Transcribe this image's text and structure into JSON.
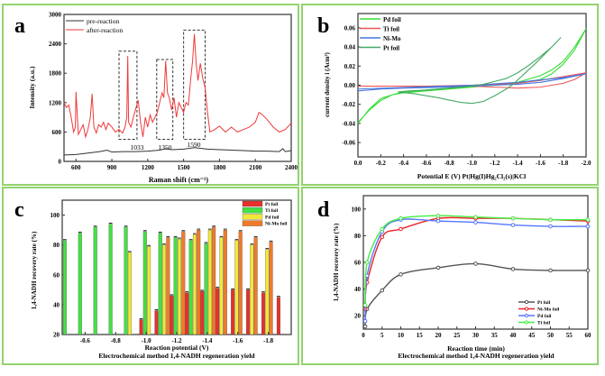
{
  "chart_data": [
    {
      "panel": "a",
      "type": "line",
      "xlabel": "Raman shift (cm⁻¹)",
      "ylabel": "Intensity (a.u.)",
      "xlim": [
        500,
        2400
      ],
      "ylim": [
        0,
        3000
      ],
      "xticks": [
        600,
        900,
        1200,
        1500,
        1800,
        2100,
        2400
      ],
      "yticks": [
        0,
        600,
        1200,
        1800,
        2400,
        3000
      ],
      "annotations": [
        "1033",
        "1350",
        "1590"
      ],
      "series": [
        {
          "name": "pre-reaction",
          "color": "#333333",
          "x": [
            500,
            600,
            700,
            800,
            860,
            900,
            1000,
            1100,
            1200,
            1300,
            1350,
            1400,
            1500,
            1590,
            1700,
            1800,
            1900,
            2000,
            2100,
            2200,
            2300,
            2330,
            2350,
            2400
          ],
          "y": [
            130,
            140,
            170,
            200,
            230,
            190,
            200,
            200,
            210,
            230,
            260,
            240,
            250,
            280,
            250,
            240,
            230,
            220,
            210,
            210,
            200,
            260,
            200,
            220
          ]
        },
        {
          "name": "after-reaction",
          "color": "#f03a3a",
          "x": [
            500,
            520,
            540,
            560,
            580,
            595,
            600,
            620,
            640,
            660,
            680,
            700,
            720,
            735,
            750,
            770,
            790,
            810,
            830,
            850,
            870,
            900,
            930,
            960,
            990,
            1010,
            1025,
            1033,
            1040,
            1060,
            1080,
            1100,
            1120,
            1140,
            1160,
            1180,
            1200,
            1220,
            1240,
            1260,
            1280,
            1300,
            1320,
            1335,
            1350,
            1365,
            1380,
            1400,
            1420,
            1440,
            1460,
            1480,
            1500,
            1520,
            1540,
            1560,
            1575,
            1590,
            1605,
            1620,
            1640,
            1660,
            1680,
            1700,
            1720,
            1760,
            1800,
            1850,
            1900,
            1950,
            2000,
            2050,
            2100,
            2130,
            2160,
            2200,
            2250,
            2300,
            2350,
            2400
          ],
          "y": [
            1200,
            1100,
            1150,
            900,
            600,
            700,
            1420,
            550,
            650,
            750,
            500,
            650,
            900,
            1380,
            700,
            580,
            750,
            700,
            800,
            650,
            780,
            700,
            600,
            650,
            580,
            700,
            900,
            2150,
            800,
            700,
            900,
            1080,
            1250,
            800,
            500,
            900,
            700,
            950,
            800,
            900,
            1000,
            1200,
            1400,
            1300,
            2050,
            1400,
            1300,
            1050,
            1300,
            900,
            1200,
            1100,
            1000,
            1200,
            1150,
            1700,
            2050,
            2600,
            2000,
            1650,
            2000,
            1700,
            1500,
            1000,
            600,
            650,
            720,
            600,
            700,
            600,
            650,
            700,
            800,
            1000,
            950,
            850,
            700,
            600,
            650,
            780
          ]
        }
      ]
    },
    {
      "panel": "b",
      "type": "line",
      "xlabel": "Potential E (V)  Pt|Hg(I)Hg₂Cl₂(s)|KCl",
      "ylabel": "current density i (Acm²)",
      "xlim": [
        0,
        -2.0
      ],
      "ylim": [
        -0.075,
        0.075
      ],
      "xticks": [
        "0.0",
        "-0.2",
        "-0.4",
        "-0.6",
        "-0.8",
        "-1.0",
        "-1.2",
        "-1.4",
        "-1.6",
        "-1.8",
        "-2.0"
      ],
      "yticks": [
        "0.06",
        "0.04",
        "0.02",
        "0.00",
        "-0.02",
        "-0.04",
        "-0.06"
      ],
      "series": [
        {
          "name": "Pd foil",
          "color": "#33dd33",
          "x": [
            0,
            -0.1,
            -0.2,
            -0.3,
            -0.4,
            -0.6,
            -0.8,
            -1.0,
            -1.2,
            -1.4,
            -1.6,
            -1.7,
            -1.8,
            -1.9,
            -2.0,
            -1.9,
            -1.8,
            -1.7,
            -1.6,
            -1.4,
            -1.2,
            -1.0,
            -0.8,
            -0.6,
            -0.4,
            -0.3,
            -0.2,
            -0.1,
            0
          ],
          "y": [
            -0.039,
            -0.026,
            -0.016,
            -0.01,
            -0.008,
            -0.006,
            -0.004,
            -0.002,
            0,
            0.003,
            0.01,
            0.016,
            0.025,
            0.04,
            0.059,
            0.037,
            0.022,
            0.012,
            0.006,
            0.002,
            0,
            -0.002,
            -0.003,
            -0.005,
            -0.007,
            -0.01,
            -0.014,
            -0.025,
            -0.04
          ]
        },
        {
          "name": "Ti foil",
          "color": "#f05555",
          "x": [
            0,
            -0.4,
            -0.8,
            -1.0,
            -1.2,
            -1.4,
            -1.6,
            -1.8,
            -1.9,
            -2.0,
            -1.8,
            -1.6,
            -1.4,
            -1.0,
            -0.6,
            -0.2,
            0
          ],
          "y": [
            -0.001,
            -0.001,
            -0.001,
            -0.001,
            -0.002,
            -0.003,
            -0.002,
            0.002,
            0.006,
            0.013,
            0.009,
            0.005,
            0.002,
            0,
            -0.001,
            -0.001,
            -0.001
          ]
        },
        {
          "name": "Ni-Mo",
          "color": "#4477dd",
          "x": [
            0,
            -0.2,
            -0.4,
            -0.8,
            -1.2,
            -1.4,
            -1.6,
            -1.8,
            -2.0,
            -1.8,
            -1.4,
            -1.0,
            -0.5,
            0
          ],
          "y": [
            -0.006,
            -0.004,
            -0.003,
            -0.002,
            0,
            0.001,
            0.003,
            0.007,
            0.012,
            0.008,
            0.003,
            0,
            -0.002,
            -0.004
          ]
        },
        {
          "name": "Pt foil",
          "color": "#44aa66",
          "x": [
            -0.35,
            -0.5,
            -0.7,
            -0.9,
            -1.0,
            -1.1,
            -1.2,
            -1.3,
            -1.35,
            -1.45,
            -1.55,
            -1.65,
            -1.78,
            -1.7,
            -1.6,
            -1.5,
            -1.4,
            -1.3,
            -1.2,
            -1.1,
            -1.0,
            -0.8,
            -0.6,
            -0.45,
            -0.35
          ],
          "y": [
            -0.007,
            -0.009,
            -0.013,
            -0.018,
            -0.019,
            -0.017,
            -0.011,
            -0.004,
            0,
            0.011,
            0.022,
            0.034,
            0.05,
            0.04,
            0.03,
            0.021,
            0.013,
            0.007,
            0.004,
            0.001,
            -0.001,
            -0.003,
            -0.005,
            -0.006,
            -0.007
          ]
        }
      ]
    },
    {
      "panel": "c",
      "type": "bar",
      "xlabel": "Reaction potential (V)",
      "caption": "Electrochemical method 1,4-NADH regeneration yield",
      "ylabel": "1,4-NADH recovery rate (%)",
      "ylim": [
        20,
        110
      ],
      "yticks": [
        20,
        40,
        60,
        80,
        100
      ],
      "categories": [
        "-0.5",
        "-0.6",
        "-0.7",
        "-0.8",
        "-0.9",
        "-1.0",
        "-1.1",
        "-1.2",
        "-1.3",
        "-1.4",
        "-1.5",
        "-1.6",
        "-1.7",
        "-1.8",
        "-1.9"
      ],
      "xticks": [
        "-0.6",
        "-0.8",
        "-1.0",
        "-1.2",
        "-1.4",
        "-1.6",
        "-1.8"
      ],
      "series": [
        {
          "name": "Pt foil",
          "color": "#e8302a",
          "values": [
            null,
            null,
            null,
            null,
            null,
            30,
            36,
            46,
            48,
            49,
            51,
            50,
            50,
            48,
            45
          ]
        },
        {
          "name": "Ti foil",
          "color": "#44e044",
          "values": [
            83,
            88,
            92,
            94,
            92,
            89,
            88,
            85,
            83,
            81,
            null,
            null,
            null,
            null,
            null
          ]
        },
        {
          "name": "Pd foil",
          "color": "#f2e83a",
          "values": [
            null,
            null,
            null,
            null,
            75,
            79,
            80,
            84,
            87,
            90,
            85,
            83,
            80,
            77,
            null
          ]
        },
        {
          "name": "Ni-Mo foil",
          "color": "#f07a2a",
          "values": [
            null,
            null,
            null,
            null,
            null,
            null,
            85,
            89,
            90,
            92,
            90,
            89,
            85,
            82,
            null
          ]
        }
      ]
    },
    {
      "panel": "d",
      "type": "line",
      "xlabel": "Reaction time  (min)",
      "caption": "Electrochemical method 1,4-NADH regeneration yield",
      "ylabel": "1,4-NADH recovery rate (%)",
      "xlim": [
        0,
        60
      ],
      "ylim": [
        10,
        110
      ],
      "xticks": [
        0,
        5,
        10,
        15,
        20,
        25,
        30,
        35,
        40,
        45,
        50,
        55,
        60
      ],
      "yticks": [
        20,
        40,
        60,
        80,
        100
      ],
      "x": [
        0.5,
        1,
        5,
        10,
        20,
        30,
        40,
        50,
        60
      ],
      "series": [
        {
          "name": "Pt foil",
          "color": "#555555",
          "values": [
            12,
            25,
            39,
            51,
            56,
            59,
            55,
            54,
            54
          ]
        },
        {
          "name": "Ni-Mo foil",
          "color": "#ee2222",
          "values": [
            25,
            45,
            79,
            85,
            93,
            93,
            93,
            92,
            91
          ]
        },
        {
          "name": "Pd foil",
          "color": "#5577ff",
          "values": [
            16,
            50,
            83,
            92,
            91,
            90,
            88,
            87,
            87
          ]
        },
        {
          "name": "Ti foil",
          "color": "#44ee44",
          "values": [
            28,
            60,
            85,
            93,
            95,
            94,
            93,
            92,
            92
          ]
        }
      ]
    }
  ],
  "panel_labels": {
    "a": "a",
    "b": "b",
    "c": "c",
    "d": "d"
  },
  "colors": {
    "frame": "#93d36f"
  }
}
